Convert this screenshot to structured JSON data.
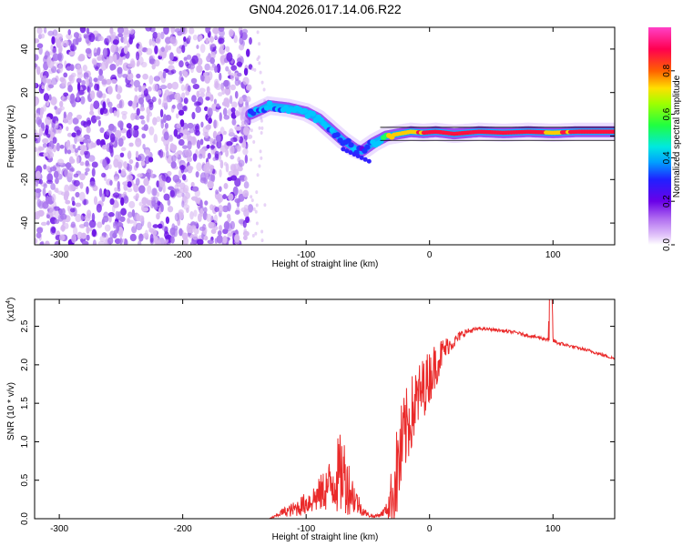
{
  "title": "GN04.2026.017.14.06.R22",
  "colors": {
    "line": "#ea2a2a",
    "noise_light": "#d8b8f2",
    "noise_mid": "#a874ee",
    "noise_dark": "#6d16e6",
    "frame": "#000000"
  },
  "chart_data": [
    {
      "type": "heatmap",
      "name": "spectrogram",
      "title": "GN04.2026.017.14.06.R22",
      "xlabel": "Height of straight line (km)",
      "ylabel": "Frequency (Hz)",
      "xlim": [
        -320,
        150
      ],
      "ylim": [
        -50,
        50
      ],
      "xticks": [
        -300,
        -200,
        -100,
        0,
        100
      ],
      "yticks": [
        -40,
        -20,
        0,
        20,
        40
      ],
      "colorbar": {
        "label": "Normalized spectral amplitude",
        "range": [
          0,
          1
        ],
        "ticks": [
          "0.0",
          "0.2",
          "0.4",
          "0.6",
          "0.8"
        ],
        "colormap": [
          "#ffffff",
          "#b06cf0",
          "#6a00e8",
          "#2020ff",
          "#00c0ff",
          "#00ffb0",
          "#20ff20",
          "#c0ff00",
          "#ffcc00",
          "#ff5000",
          "#ff0050",
          "#ff40c0"
        ]
      },
      "noise_region_x": [
        -320,
        -145
      ],
      "signal_track": {
        "x": [
          -145,
          -130,
          -115,
          -100,
          -90,
          -80,
          -70,
          -60,
          -55,
          -45,
          -35,
          -25,
          -15,
          -5,
          5,
          20,
          40,
          60,
          80,
          100,
          120,
          150
        ],
        "freq": [
          10,
          14,
          13,
          11,
          8,
          3,
          -2,
          -6,
          -7,
          -3,
          0,
          1,
          2,
          1.5,
          2,
          1,
          2,
          1.5,
          2,
          1.5,
          2,
          2
        ],
        "amplitude": [
          0.4,
          0.45,
          0.5,
          0.55,
          0.5,
          0.45,
          0.4,
          0.4,
          0.3,
          0.5,
          0.7,
          0.8,
          0.85,
          0.9,
          0.95,
          1.0,
          1.0,
          1.0,
          0.95,
          0.8,
          0.9,
          0.9
        ]
      }
    },
    {
      "type": "line",
      "name": "snr",
      "xlabel": "Height of straight line (km)",
      "ylabel": "SNR (10 * v/v)",
      "scale_label": "(x10",
      "scale_exponent": "4",
      "xlim": [
        -320,
        150
      ],
      "ylim": [
        0,
        2.85
      ],
      "xticks": [
        -300,
        -200,
        -100,
        0,
        100
      ],
      "yticks": [
        "0.0",
        "0.5",
        "1.0",
        "1.5",
        "2.0",
        "2.5"
      ],
      "envelope": {
        "x": [
          -320,
          -300,
          -250,
          -200,
          -150,
          -130,
          -125,
          -120,
          -110,
          -100,
          -90,
          -80,
          -75,
          -70,
          -65,
          -60,
          -55,
          -50,
          -45,
          -40,
          -35,
          -30,
          -25,
          -20,
          -15,
          -10,
          -5,
          0,
          5,
          10,
          15,
          20,
          25,
          30,
          35,
          40,
          50,
          60,
          70,
          80,
          90,
          95,
          98,
          100,
          102,
          105,
          110,
          120,
          130,
          140,
          150
        ],
        "mean": [
          0.0,
          0.0,
          0.0,
          0.0,
          0.0,
          0.0,
          0.03,
          0.08,
          0.12,
          0.2,
          0.3,
          0.45,
          0.55,
          0.6,
          0.4,
          0.25,
          0.12,
          0.05,
          0.03,
          0.05,
          0.12,
          0.3,
          0.7,
          1.1,
          1.35,
          1.55,
          1.7,
          1.85,
          2.0,
          2.15,
          2.25,
          2.3,
          2.38,
          2.43,
          2.45,
          2.47,
          2.46,
          2.44,
          2.42,
          2.38,
          2.35,
          2.33,
          2.6,
          2.32,
          2.3,
          2.28,
          2.26,
          2.22,
          2.18,
          2.13,
          2.08
        ],
        "noise": [
          0.0,
          0.0,
          0.0,
          0.0,
          0.0,
          0.0,
          0.02,
          0.05,
          0.1,
          0.15,
          0.22,
          0.35,
          0.5,
          0.55,
          0.35,
          0.2,
          0.08,
          0.03,
          0.02,
          0.03,
          0.08,
          0.45,
          0.7,
          0.55,
          0.5,
          0.45,
          0.4,
          0.35,
          0.3,
          0.2,
          0.12,
          0.08,
          0.06,
          0.04,
          0.03,
          0.02,
          0.02,
          0.02,
          0.02,
          0.02,
          0.02,
          0.03,
          0.3,
          0.04,
          0.03,
          0.03,
          0.02,
          0.02,
          0.02,
          0.02,
          0.02
        ]
      }
    }
  ]
}
